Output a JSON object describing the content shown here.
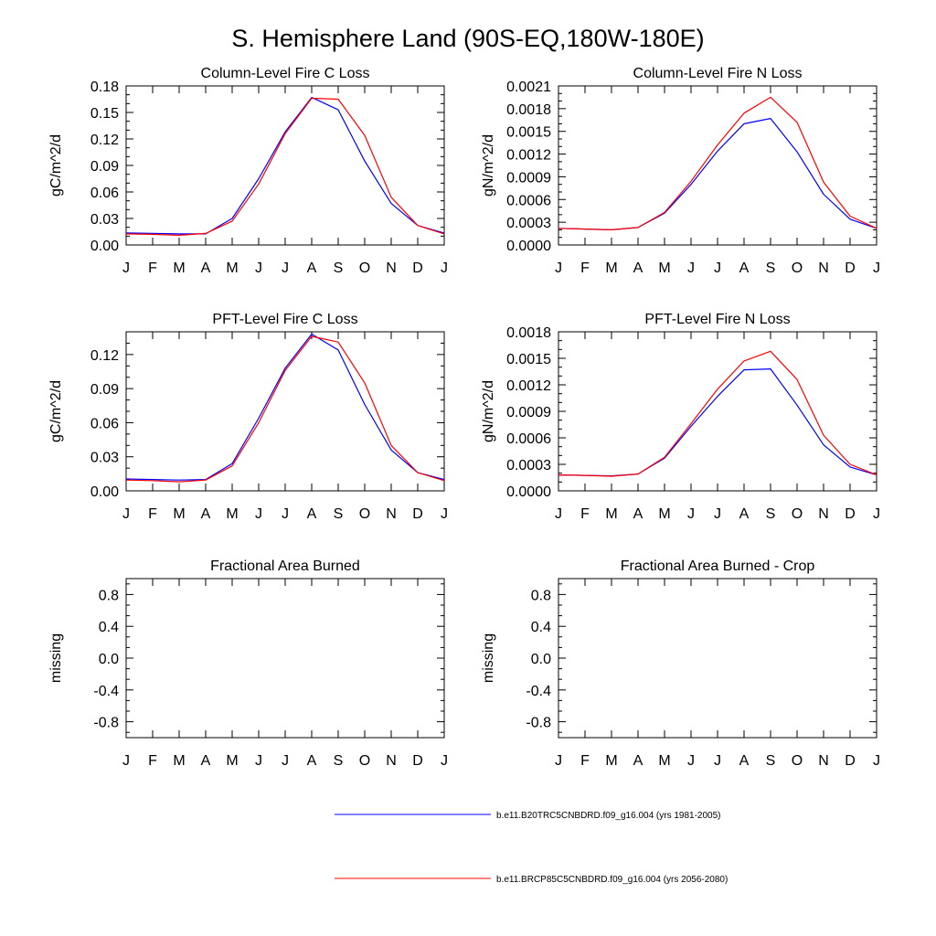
{
  "title": "S. Hemisphere Land (90S-EQ,180W-180E)",
  "months": [
    "J",
    "F",
    "M",
    "A",
    "M",
    "J",
    "J",
    "A",
    "S",
    "O",
    "N",
    "D",
    "J"
  ],
  "legend": [
    {
      "label": "b.e11.B20TRC5CNBDRD.f09_g16.004 (yrs 1981-2005)",
      "color": "#0000ff"
    },
    {
      "label": "b.e11.BRCP85C5CNBDRD.f09_g16.004 (yrs 2056-2080)",
      "color": "#ff0000"
    }
  ],
  "chart_data": [
    {
      "type": "line",
      "title": "Column-Level Fire C Loss",
      "ylabel": "gC/m^2/d",
      "ylim": [
        0,
        0.18
      ],
      "yticks": [
        "0.00",
        "0.03",
        "0.06",
        "0.09",
        "0.12",
        "0.15",
        "0.18"
      ],
      "x": [
        "J",
        "F",
        "M",
        "A",
        "M",
        "J",
        "J",
        "A",
        "S",
        "O",
        "N",
        "D",
        "J"
      ],
      "series": [
        {
          "color": "#0000ff",
          "values": [
            0.0135,
            0.013,
            0.0125,
            0.0125,
            0.03,
            0.075,
            0.128,
            0.167,
            0.153,
            0.095,
            0.047,
            0.022,
            0.0135
          ]
        },
        {
          "color": "#ff0000",
          "values": [
            0.0125,
            0.012,
            0.011,
            0.013,
            0.027,
            0.069,
            0.126,
            0.166,
            0.165,
            0.124,
            0.054,
            0.022,
            0.0125
          ]
        }
      ]
    },
    {
      "type": "line",
      "title": "Column-Level Fire N Loss",
      "ylabel": "gN/m^2/d",
      "ylim": [
        0,
        0.0021
      ],
      "yticks": [
        "0.0000",
        "0.0003",
        "0.0006",
        "0.0009",
        "0.0012",
        "0.0015",
        "0.0018",
        "0.0021"
      ],
      "x": [
        "J",
        "F",
        "M",
        "A",
        "M",
        "J",
        "J",
        "A",
        "S",
        "O",
        "N",
        "D",
        "J"
      ],
      "series": [
        {
          "color": "#0000ff",
          "values": [
            0.00022,
            0.00021,
            0.0002,
            0.00023,
            0.00042,
            0.0008,
            0.00124,
            0.0016,
            0.00167,
            0.00123,
            0.00067,
            0.00034,
            0.00022
          ]
        },
        {
          "color": "#ff0000",
          "values": [
            0.00022,
            0.00021,
            0.0002,
            0.00023,
            0.00043,
            0.00084,
            0.00132,
            0.00174,
            0.00195,
            0.00162,
            0.00083,
            0.00038,
            0.00022
          ]
        }
      ]
    },
    {
      "type": "line",
      "title": "PFT-Level Fire C Loss",
      "ylabel": "gC/m^2/d",
      "ylim": [
        0,
        0.14
      ],
      "yticks": [
        "0.00",
        "0.03",
        "0.06",
        "0.09",
        "0.12"
      ],
      "x": [
        "J",
        "F",
        "M",
        "A",
        "M",
        "J",
        "J",
        "A",
        "S",
        "O",
        "N",
        "D",
        "J"
      ],
      "series": [
        {
          "color": "#0000ff",
          "values": [
            0.0105,
            0.01,
            0.0095,
            0.01,
            0.024,
            0.064,
            0.108,
            0.138,
            0.124,
            0.076,
            0.036,
            0.016,
            0.01
          ]
        },
        {
          "color": "#ff0000",
          "values": [
            0.0095,
            0.009,
            0.008,
            0.0095,
            0.022,
            0.06,
            0.106,
            0.136,
            0.131,
            0.095,
            0.04,
            0.016,
            0.009
          ]
        }
      ]
    },
    {
      "type": "line",
      "title": "PFT-Level Fire N Loss",
      "ylabel": "gN/m^2/d",
      "ylim": [
        0,
        0.0018
      ],
      "yticks": [
        "0.0000",
        "0.0003",
        "0.0006",
        "0.0009",
        "0.0012",
        "0.0015",
        "0.0018"
      ],
      "x": [
        "J",
        "F",
        "M",
        "A",
        "M",
        "J",
        "J",
        "A",
        "S",
        "O",
        "N",
        "D",
        "J"
      ],
      "series": [
        {
          "color": "#0000ff",
          "values": [
            0.00018,
            0.000175,
            0.00017,
            0.00019,
            0.00037,
            0.00073,
            0.00107,
            0.00137,
            0.00138,
            0.00097,
            0.00052,
            0.00027,
            0.00018
          ]
        },
        {
          "color": "#ff0000",
          "values": [
            0.00018,
            0.000175,
            0.000165,
            0.00019,
            0.00038,
            0.00076,
            0.00115,
            0.00147,
            0.00158,
            0.00126,
            0.00063,
            0.0003,
            0.00018
          ]
        }
      ]
    },
    {
      "type": "line",
      "title": "Fractional Area Burned",
      "ylabel": "missing",
      "ylim": [
        -1,
        1
      ],
      "yticks": [
        "-0.8",
        "-0.4",
        "0.0",
        "0.4",
        "0.8"
      ],
      "x": [
        "J",
        "F",
        "M",
        "A",
        "M",
        "J",
        "J",
        "A",
        "S",
        "O",
        "N",
        "D",
        "J"
      ],
      "series": []
    },
    {
      "type": "line",
      "title": "Fractional Area Burned - Crop",
      "ylabel": "missing",
      "ylim": [
        -1,
        1
      ],
      "yticks": [
        "-0.8",
        "-0.4",
        "0.0",
        "0.4",
        "0.8"
      ],
      "x": [
        "J",
        "F",
        "M",
        "A",
        "M",
        "J",
        "J",
        "A",
        "S",
        "O",
        "N",
        "D",
        "J"
      ],
      "series": []
    }
  ]
}
